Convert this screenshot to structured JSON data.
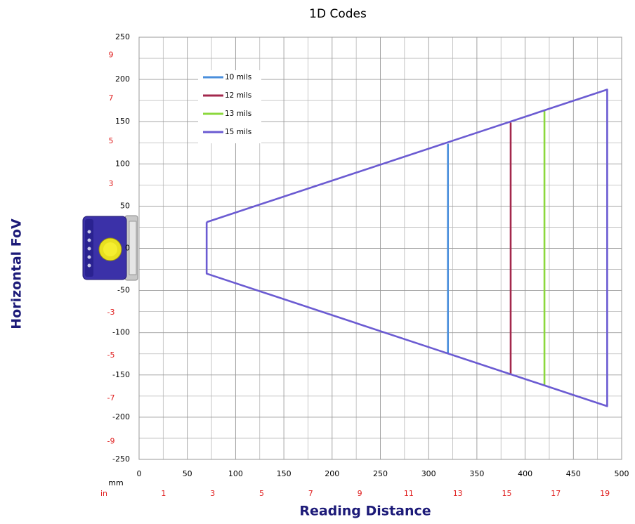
{
  "chart_data": {
    "type": "line",
    "title": "1D Codes",
    "xlabel": "Reading Distance",
    "ylabel": "Horizontal FoV",
    "x_unit": "mm",
    "x2_unit": "in",
    "xlim": [
      0,
      500
    ],
    "ylim": [
      -250,
      250
    ],
    "xticks": [
      0,
      50,
      100,
      150,
      200,
      250,
      300,
      350,
      400,
      450,
      500
    ],
    "yticks": [
      -250,
      -200,
      -150,
      -100,
      -50,
      0,
      50,
      100,
      150,
      200,
      250
    ],
    "x2ticks": [
      {
        "value": 25.4,
        "label": "1"
      },
      {
        "value": 76.2,
        "label": "3"
      },
      {
        "value": 127,
        "label": "5"
      },
      {
        "value": 177.8,
        "label": "7"
      },
      {
        "value": 228.6,
        "label": "9"
      },
      {
        "value": 279.4,
        "label": "11"
      },
      {
        "value": 330.2,
        "label": "13"
      },
      {
        "value": 381,
        "label": "15"
      },
      {
        "value": 431.8,
        "label": "17"
      },
      {
        "value": 482.6,
        "label": "19"
      }
    ],
    "y2ticks": [
      {
        "value": 228.6,
        "label": "9"
      },
      {
        "value": 177.8,
        "label": "7"
      },
      {
        "value": 127,
        "label": "5"
      },
      {
        "value": 76.2,
        "label": "3"
      },
      {
        "value": -76.2,
        "label": "-3"
      },
      {
        "value": -127,
        "label": "-5"
      },
      {
        "value": -177.8,
        "label": "-7"
      },
      {
        "value": -228.6,
        "label": "-9"
      }
    ],
    "grid": true,
    "minor_grid": true,
    "legend": "upper left",
    "series": [
      {
        "name": "10 mils",
        "color": "#4a8fdc",
        "x": [
          320,
          320
        ],
        "values": [
          124,
          -125
        ]
      },
      {
        "name": "12 mils",
        "color": "#a3284c",
        "x": [
          385,
          385
        ],
        "values": [
          149,
          -149
        ]
      },
      {
        "name": "13 mils",
        "color": "#8bd83c",
        "x": [
          420,
          420
        ],
        "values": [
          163,
          -163
        ]
      },
      {
        "name": "15 mils",
        "color": "#6b5bd2",
        "x": [
          70,
          70,
          485,
          485,
          70
        ],
        "values": [
          31,
          -30,
          -187,
          188,
          31
        ]
      }
    ]
  }
}
